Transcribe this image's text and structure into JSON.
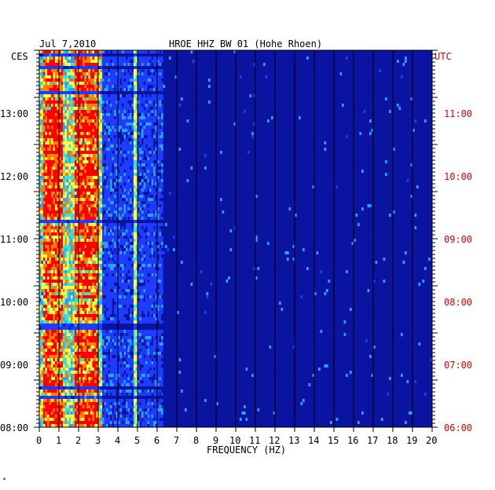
{
  "header": {
    "date": "Jul 7,2010",
    "title": "HROE HHZ BW 01 (Hohe Rhoen)"
  },
  "left_axis": {
    "label": "CES",
    "ticks": [
      "13:00",
      "12:00",
      "11:00",
      "10:00",
      "09:00",
      "08:00"
    ]
  },
  "right_axis": {
    "label": "UTC",
    "ticks": [
      "11:00",
      "10:00",
      "09:00",
      "08:00",
      "07:00",
      "06:00"
    ],
    "color": "#e00000"
  },
  "corner_mark": "*",
  "chart_data": {
    "type": "heatmap",
    "title": "HROE HHZ BW 01 (Hohe Rhoen)",
    "xlabel": "FREQUENCY (HZ)",
    "xlim": [
      0,
      20
    ],
    "x_ticks": [
      "0",
      "1",
      "2",
      "3",
      "4",
      "5",
      "6",
      "7",
      "8",
      "9",
      "10",
      "11",
      "12",
      "13",
      "14",
      "15",
      "16",
      "17",
      "18",
      "19",
      "20"
    ],
    "y_left_ticks_ces": [
      "13:00",
      "12:00",
      "11:00",
      "10:00",
      "09:00",
      "08:00"
    ],
    "y_right_ticks_utc": [
      "11:00",
      "10:00",
      "09:00",
      "08:00",
      "07:00",
      "06:00"
    ],
    "background_color": "#0a14a0",
    "energy_bands_hz": [
      [
        0.2,
        1.2
      ],
      [
        1.8,
        3.0
      ]
    ],
    "persistent_line_hz": 4.9,
    "colormap": [
      "#0a14a0",
      "#1e3cff",
      "#2aa0ff",
      "#40e0d0",
      "#ffff40",
      "#ff8000",
      "#ff0000"
    ],
    "grid": true
  }
}
